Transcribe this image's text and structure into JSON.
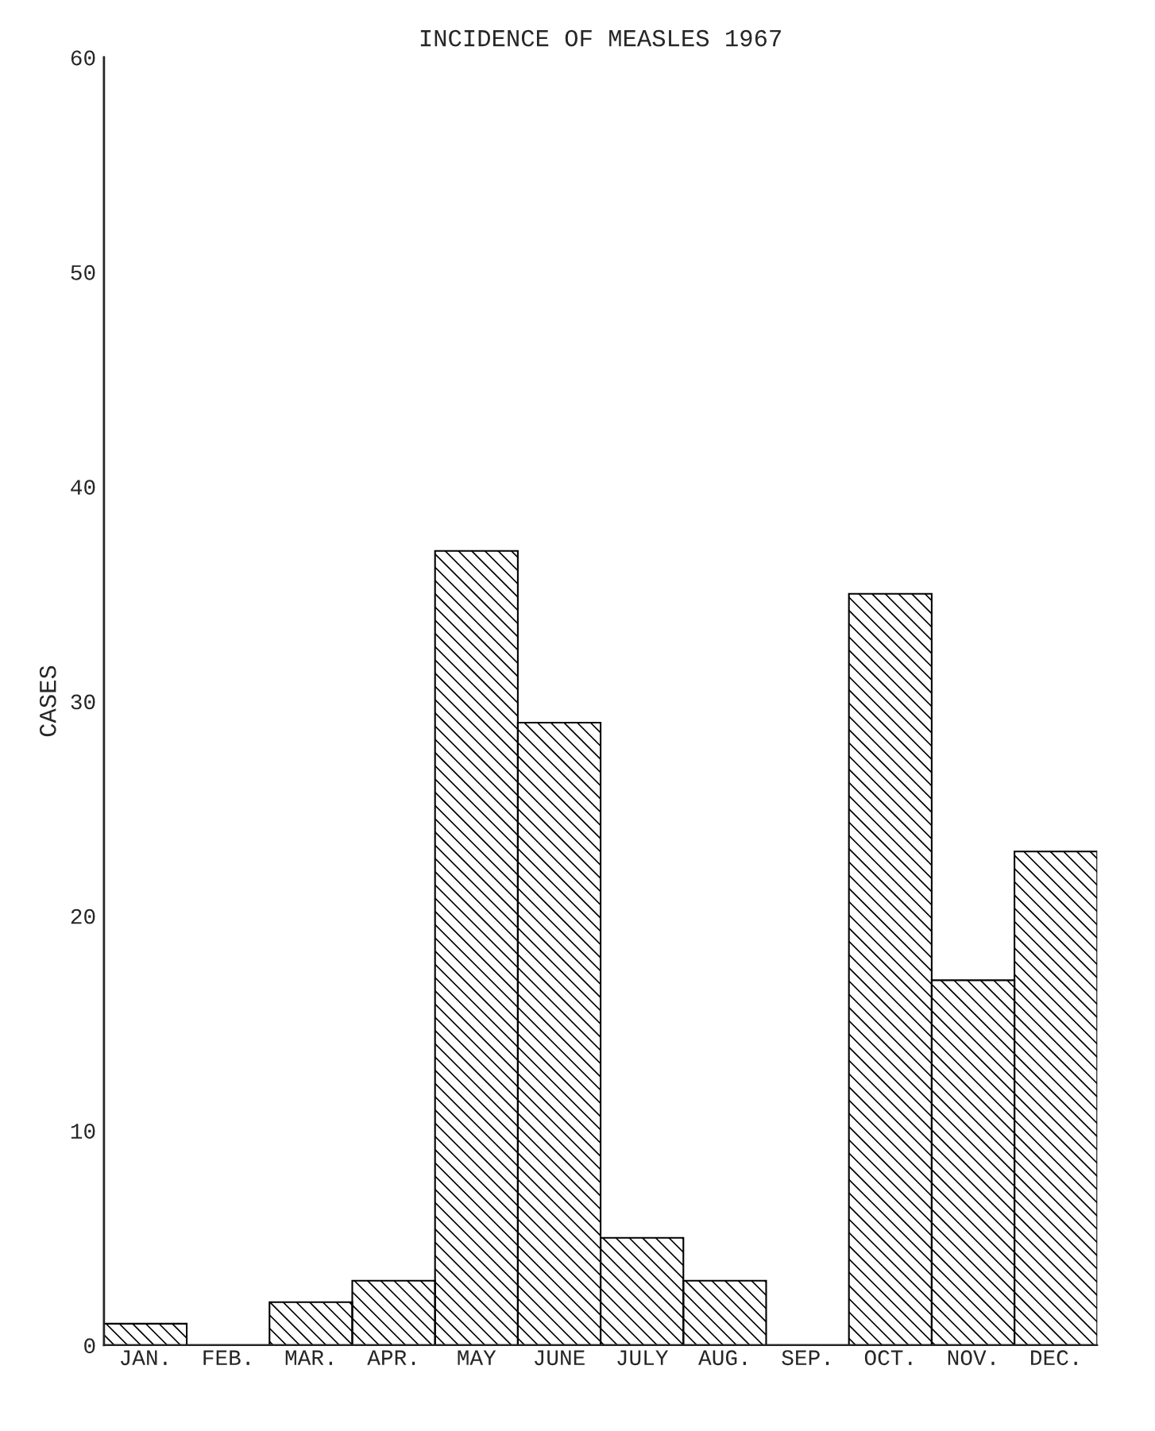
{
  "chart_data": {
    "type": "bar",
    "title": "INCIDENCE OF MEASLES 1967",
    "ylabel": "CASES",
    "categories": [
      "JAN.",
      "FEB.",
      "MAR.",
      "APR.",
      "MAY",
      "JUNE",
      "JULY",
      "AUG.",
      "SEP.",
      "OCT.",
      "NOV.",
      "DEC."
    ],
    "values": [
      1,
      0,
      2,
      3,
      37,
      29,
      5,
      3,
      0,
      35,
      17,
      23
    ],
    "color": "#000000",
    "ylim": [
      0,
      60
    ],
    "yticks": [
      0,
      10,
      20,
      30,
      40,
      50,
      60
    ],
    "grid": false
  }
}
